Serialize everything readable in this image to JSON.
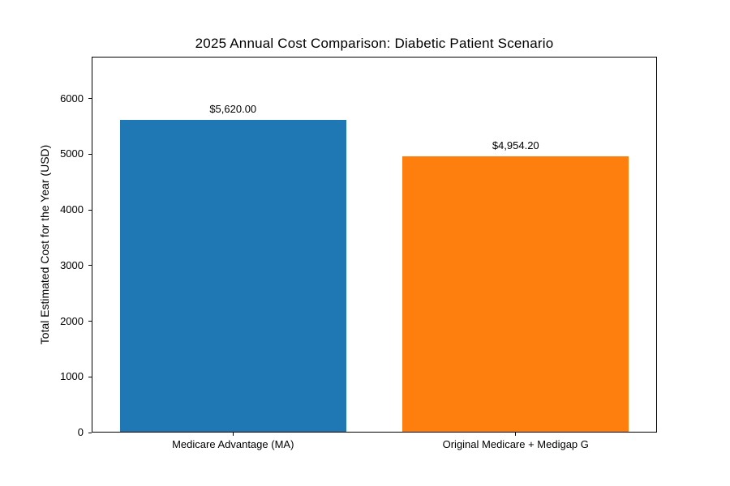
{
  "chart_data": {
    "type": "bar",
    "title": "2025 Annual Cost Comparison: Diabetic Patient Scenario",
    "categories": [
      "Medicare Advantage (MA)",
      "Original Medicare + Medigap G"
    ],
    "values": [
      5620.0,
      4954.2
    ],
    "bar_labels": [
      "$5,620.00",
      "$4,954.20"
    ],
    "bar_colors": [
      "#1f77b4",
      "#ff7f0e"
    ],
    "xlabel": "",
    "ylabel": "Total Estimated Cost for the Year (USD)",
    "ylim": [
      0,
      6750
    ],
    "yticks": [
      0,
      1000,
      2000,
      3000,
      4000,
      5000,
      6000
    ],
    "grid": false,
    "legend_position": "none",
    "bar_width_fraction": 0.8,
    "text_color": "#000000",
    "spine_color": "#000000",
    "background_color": "#ffffff"
  }
}
